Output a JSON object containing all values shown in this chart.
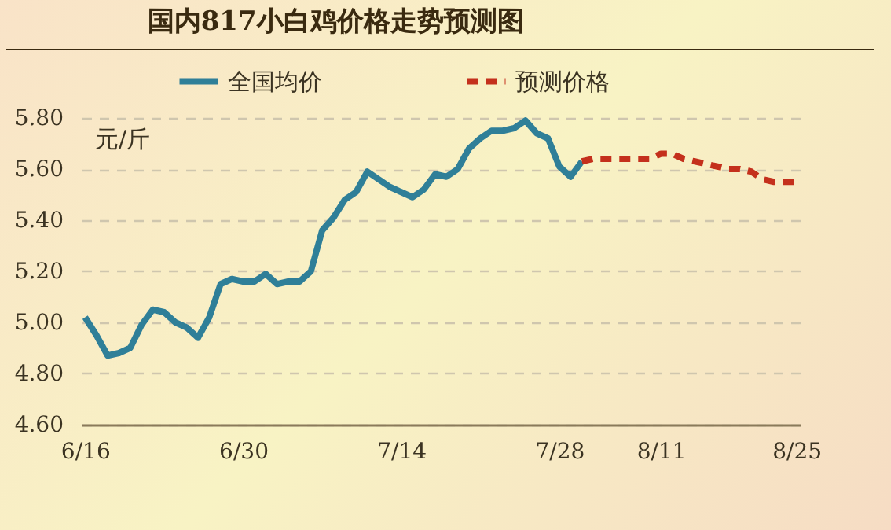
{
  "chart_data": {
    "type": "line",
    "title": "国内817小白鸡价格走势预测图",
    "ylabel": "元/斤",
    "categories": [
      "6/16",
      null,
      null,
      null,
      null,
      null,
      null,
      null,
      null,
      null,
      null,
      null,
      null,
      null,
      "6/30",
      null,
      null,
      null,
      null,
      null,
      null,
      null,
      null,
      null,
      null,
      null,
      null,
      null,
      "7/14",
      null,
      null,
      null,
      null,
      null,
      null,
      null,
      null,
      null,
      null,
      null,
      null,
      null,
      "7/28",
      null,
      null,
      null,
      null,
      null,
      null,
      null,
      null,
      "8/11",
      null,
      null,
      null,
      null,
      null,
      null,
      null,
      null,
      null,
      null,
      null,
      "8/25"
    ],
    "series": [
      {
        "name": "全国均价",
        "color": "#2f7f98",
        "line_style": "solid",
        "values": [
          5.02,
          4.95,
          4.87,
          4.88,
          4.9,
          4.99,
          5.05,
          5.04,
          5.0,
          4.98,
          4.94,
          5.02,
          5.15,
          5.17,
          5.16,
          5.16,
          5.19,
          5.15,
          5.16,
          5.16,
          5.2,
          5.36,
          5.41,
          5.48,
          5.51,
          5.59,
          5.56,
          5.53,
          5.51,
          5.49,
          5.52,
          5.58,
          5.57,
          5.6,
          5.68,
          5.72,
          5.75,
          5.75,
          5.76,
          5.79,
          5.74,
          5.72,
          5.61,
          5.57,
          5.63,
          null,
          null,
          null,
          null,
          null,
          null,
          null,
          null,
          null,
          null,
          null,
          null,
          null,
          null,
          null,
          null,
          null,
          null,
          null
        ]
      },
      {
        "name": "预测价格",
        "color": "#c4301c",
        "line_style": "dashed",
        "values": [
          null,
          null,
          null,
          null,
          null,
          null,
          null,
          null,
          null,
          null,
          null,
          null,
          null,
          null,
          null,
          null,
          null,
          null,
          null,
          null,
          null,
          null,
          null,
          null,
          null,
          null,
          null,
          null,
          null,
          null,
          null,
          null,
          null,
          null,
          null,
          null,
          null,
          null,
          null,
          null,
          null,
          null,
          null,
          null,
          5.63,
          5.64,
          5.64,
          5.64,
          5.64,
          5.64,
          5.64,
          5.66,
          5.66,
          5.64,
          5.63,
          5.62,
          5.61,
          5.6,
          5.6,
          5.59,
          5.56,
          5.55,
          5.55,
          5.55
        ]
      }
    ],
    "ylim": [
      4.6,
      5.8
    ],
    "yticks": [
      {
        "value": 4.6,
        "label": "4.60"
      },
      {
        "value": 4.8,
        "label": "4.80"
      },
      {
        "value": 5.0,
        "label": "5.00"
      },
      {
        "value": 5.2,
        "label": "5.20"
      },
      {
        "value": 5.4,
        "label": "5.40"
      },
      {
        "value": 5.6,
        "label": "5.60"
      },
      {
        "value": 5.8,
        "label": "5.80"
      }
    ],
    "grid": "y",
    "legend": "top",
    "marker": "none"
  }
}
